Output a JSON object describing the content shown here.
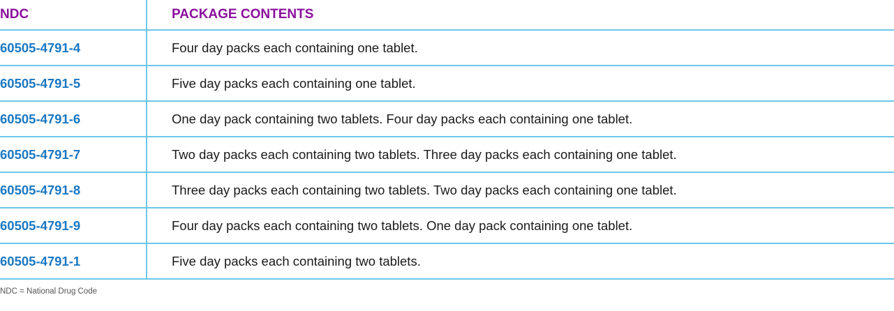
{
  "table": {
    "headers": [
      "NDC",
      "PACKAGE CONTENTS"
    ],
    "rows": [
      {
        "ndc": "60505-4791-4",
        "contents": "Four day packs each containing one tablet."
      },
      {
        "ndc": "60505-4791-5",
        "contents": "Five day packs each containing one tablet."
      },
      {
        "ndc": "60505-4791-6",
        "contents": "One day pack containing two tablets. Four day packs each containing one tablet."
      },
      {
        "ndc": "60505-4791-7",
        "contents": "Two day packs each containing two tablets. Three day packs each containing one tablet."
      },
      {
        "ndc": "60505-4791-8",
        "contents": "Three day packs each containing two tablets. Two day packs each containing one tablet."
      },
      {
        "ndc": "60505-4791-9",
        "contents": "Four day packs each containing two tablets. One day pack containing one tablet."
      },
      {
        "ndc": "60505-4791-1",
        "contents": "Five day packs each containing two tablets."
      }
    ]
  },
  "footnote": "NDC = National Drug Code",
  "colors": {
    "header": "#8a0f9c",
    "ndc": "#1a78c2",
    "rule": "#6cc7e8"
  }
}
